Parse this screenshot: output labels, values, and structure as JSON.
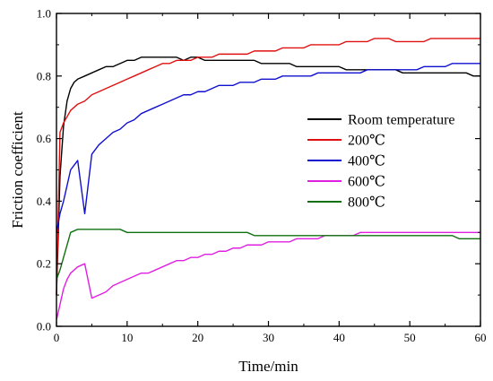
{
  "chart_data": {
    "type": "line",
    "xlabel": "Time/min",
    "ylabel": "Friction coefficient",
    "xlim": [
      0,
      60
    ],
    "ylim": [
      0.0,
      1.0
    ],
    "xticks": [
      0,
      10,
      20,
      30,
      40,
      50,
      60
    ],
    "yticks": [
      0.0,
      0.2,
      0.4,
      0.6,
      0.8,
      1.0
    ],
    "ytick_labels": [
      "0.0",
      "0.2",
      "0.4",
      "0.6",
      "0.8",
      "1.0"
    ],
    "grid": false,
    "legend_position": "right",
    "series": [
      {
        "name": "Room temperature",
        "color": "#000000",
        "x": [
          0,
          0.5,
          1,
          1.5,
          2,
          2.5,
          3,
          4,
          5,
          6,
          7,
          8,
          9,
          10,
          11,
          12,
          13,
          14,
          15,
          16,
          17,
          18,
          19,
          20,
          21,
          22,
          23,
          24,
          25,
          26,
          27,
          28,
          29,
          30,
          31,
          32,
          33,
          34,
          35,
          36,
          37,
          38,
          39,
          40,
          41,
          42,
          43,
          44,
          45,
          46,
          47,
          48,
          49,
          50,
          51,
          52,
          53,
          54,
          55,
          56,
          57,
          58,
          59,
          60
        ],
        "y": [
          0.1,
          0.48,
          0.64,
          0.72,
          0.76,
          0.78,
          0.79,
          0.8,
          0.81,
          0.82,
          0.83,
          0.83,
          0.84,
          0.85,
          0.85,
          0.86,
          0.86,
          0.86,
          0.86,
          0.86,
          0.86,
          0.85,
          0.86,
          0.86,
          0.85,
          0.85,
          0.85,
          0.85,
          0.85,
          0.85,
          0.85,
          0.85,
          0.84,
          0.84,
          0.84,
          0.84,
          0.84,
          0.83,
          0.83,
          0.83,
          0.83,
          0.83,
          0.83,
          0.83,
          0.82,
          0.82,
          0.82,
          0.82,
          0.82,
          0.82,
          0.82,
          0.82,
          0.81,
          0.81,
          0.81,
          0.81,
          0.81,
          0.81,
          0.81,
          0.81,
          0.81,
          0.81,
          0.8,
          0.8
        ]
      },
      {
        "name": "200℃",
        "color": "#e01010",
        "x": [
          0,
          0.5,
          1,
          1.5,
          2,
          3,
          4,
          5,
          6,
          7,
          8,
          9,
          10,
          11,
          12,
          13,
          14,
          15,
          16,
          17,
          18,
          19,
          20,
          21,
          22,
          23,
          24,
          25,
          26,
          27,
          28,
          29,
          30,
          31,
          32,
          33,
          34,
          35,
          36,
          37,
          38,
          39,
          40,
          41,
          42,
          43,
          44,
          45,
          46,
          47,
          48,
          49,
          50,
          51,
          52,
          53,
          54,
          55,
          56,
          57,
          58,
          59,
          60
        ],
        "y": [
          0.1,
          0.62,
          0.65,
          0.67,
          0.69,
          0.71,
          0.72,
          0.74,
          0.75,
          0.76,
          0.77,
          0.78,
          0.79,
          0.8,
          0.81,
          0.82,
          0.83,
          0.84,
          0.84,
          0.85,
          0.85,
          0.85,
          0.86,
          0.86,
          0.86,
          0.87,
          0.87,
          0.87,
          0.87,
          0.87,
          0.88,
          0.88,
          0.88,
          0.88,
          0.89,
          0.89,
          0.89,
          0.89,
          0.9,
          0.9,
          0.9,
          0.9,
          0.9,
          0.91,
          0.91,
          0.91,
          0.91,
          0.92,
          0.92,
          0.92,
          0.91,
          0.91,
          0.91,
          0.91,
          0.91,
          0.92,
          0.92,
          0.92,
          0.92,
          0.92,
          0.92,
          0.92,
          0.92
        ]
      },
      {
        "name": "400℃",
        "color": "#1010d0",
        "x": [
          0,
          0.5,
          1,
          1.5,
          2,
          3,
          4,
          5,
          6,
          7,
          8,
          9,
          10,
          11,
          12,
          13,
          14,
          15,
          16,
          17,
          18,
          19,
          20,
          21,
          22,
          23,
          24,
          25,
          26,
          27,
          28,
          29,
          30,
          31,
          32,
          33,
          34,
          35,
          36,
          37,
          38,
          39,
          40,
          41,
          42,
          43,
          44,
          45,
          46,
          47,
          48,
          49,
          50,
          51,
          52,
          53,
          54,
          55,
          56,
          57,
          58,
          59,
          60
        ],
        "y": [
          0.3,
          0.36,
          0.4,
          0.45,
          0.5,
          0.53,
          0.36,
          0.55,
          0.58,
          0.6,
          0.62,
          0.63,
          0.65,
          0.66,
          0.68,
          0.69,
          0.7,
          0.71,
          0.72,
          0.73,
          0.74,
          0.74,
          0.75,
          0.75,
          0.76,
          0.77,
          0.77,
          0.77,
          0.78,
          0.78,
          0.78,
          0.79,
          0.79,
          0.79,
          0.8,
          0.8,
          0.8,
          0.8,
          0.8,
          0.81,
          0.81,
          0.81,
          0.81,
          0.81,
          0.81,
          0.81,
          0.82,
          0.82,
          0.82,
          0.82,
          0.82,
          0.82,
          0.82,
          0.82,
          0.83,
          0.83,
          0.83,
          0.83,
          0.84,
          0.84,
          0.84,
          0.84,
          0.84
        ]
      },
      {
        "name": "600℃",
        "color": "#e020e0",
        "x": [
          0,
          0.5,
          1,
          1.5,
          2,
          3,
          4,
          5,
          6,
          7,
          8,
          9,
          10,
          11,
          12,
          13,
          14,
          15,
          16,
          17,
          18,
          19,
          20,
          21,
          22,
          23,
          24,
          25,
          26,
          27,
          28,
          29,
          30,
          31,
          32,
          33,
          34,
          35,
          36,
          37,
          38,
          39,
          40,
          41,
          42,
          43,
          44,
          45,
          46,
          47,
          48,
          49,
          50,
          51,
          52,
          53,
          54,
          55,
          56,
          57,
          58,
          59,
          60
        ],
        "y": [
          0.02,
          0.07,
          0.12,
          0.15,
          0.17,
          0.19,
          0.2,
          0.09,
          0.1,
          0.11,
          0.13,
          0.14,
          0.15,
          0.16,
          0.17,
          0.17,
          0.18,
          0.19,
          0.2,
          0.21,
          0.21,
          0.22,
          0.22,
          0.23,
          0.23,
          0.24,
          0.24,
          0.25,
          0.25,
          0.26,
          0.26,
          0.26,
          0.27,
          0.27,
          0.27,
          0.27,
          0.28,
          0.28,
          0.28,
          0.28,
          0.29,
          0.29,
          0.29,
          0.29,
          0.29,
          0.3,
          0.3,
          0.3,
          0.3,
          0.3,
          0.3,
          0.3,
          0.3,
          0.3,
          0.3,
          0.3,
          0.3,
          0.3,
          0.3,
          0.3,
          0.3,
          0.3,
          0.3
        ]
      },
      {
        "name": "800℃",
        "color": "#107010",
        "x": [
          0,
          0.5,
          1,
          1.5,
          2,
          3,
          4,
          5,
          6,
          7,
          8,
          9,
          10,
          11,
          12,
          13,
          14,
          15,
          16,
          17,
          18,
          19,
          20,
          21,
          22,
          23,
          24,
          25,
          26,
          27,
          28,
          29,
          30,
          31,
          32,
          33,
          34,
          35,
          36,
          37,
          38,
          39,
          40,
          41,
          42,
          43,
          44,
          45,
          46,
          47,
          48,
          49,
          50,
          51,
          52,
          53,
          54,
          55,
          56,
          57,
          58,
          59,
          60
        ],
        "y": [
          0.15,
          0.18,
          0.22,
          0.26,
          0.3,
          0.31,
          0.31,
          0.31,
          0.31,
          0.31,
          0.31,
          0.31,
          0.3,
          0.3,
          0.3,
          0.3,
          0.3,
          0.3,
          0.3,
          0.3,
          0.3,
          0.3,
          0.3,
          0.3,
          0.3,
          0.3,
          0.3,
          0.3,
          0.3,
          0.3,
          0.29,
          0.29,
          0.29,
          0.29,
          0.29,
          0.29,
          0.29,
          0.29,
          0.29,
          0.29,
          0.29,
          0.29,
          0.29,
          0.29,
          0.29,
          0.29,
          0.29,
          0.29,
          0.29,
          0.29,
          0.29,
          0.29,
          0.29,
          0.29,
          0.29,
          0.29,
          0.29,
          0.29,
          0.29,
          0.28,
          0.28,
          0.28,
          0.28
        ]
      }
    ]
  }
}
